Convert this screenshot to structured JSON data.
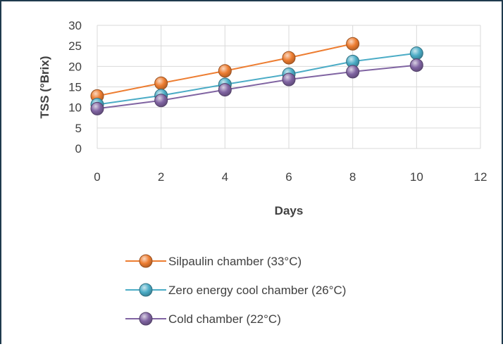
{
  "chart_data": {
    "type": "line",
    "title": "",
    "xlabel": "Days",
    "ylabel": "TSS (°Brix)",
    "xlim": [
      0,
      12
    ],
    "ylim": [
      0,
      30
    ],
    "x_ticks": [
      "0",
      "2",
      "4",
      "6",
      "8",
      "10",
      "12"
    ],
    "y_ticks": [
      "0",
      "5",
      "10",
      "15",
      "20",
      "25",
      "30"
    ],
    "grid": true,
    "legend_position": "bottom",
    "series": [
      {
        "name": "Silpaulin chamber (33°C)",
        "color": "#ed7d31",
        "x": [
          0,
          2,
          4,
          6,
          8
        ],
        "y": [
          12.8,
          15.9,
          18.9,
          22.1,
          25.5
        ]
      },
      {
        "name": "Zero energy cool chamber (26°C)",
        "color": "#4bacc6",
        "x": [
          0,
          2,
          4,
          6,
          8,
          10
        ],
        "y": [
          10.7,
          12.9,
          15.6,
          18.1,
          21.2,
          23.2
        ]
      },
      {
        "name": "Cold chamber (22°C)",
        "color": "#8064a2",
        "x": [
          0,
          2,
          4,
          6,
          8,
          10
        ],
        "y": [
          9.7,
          11.7,
          14.3,
          16.8,
          18.7,
          20.3
        ]
      }
    ]
  }
}
